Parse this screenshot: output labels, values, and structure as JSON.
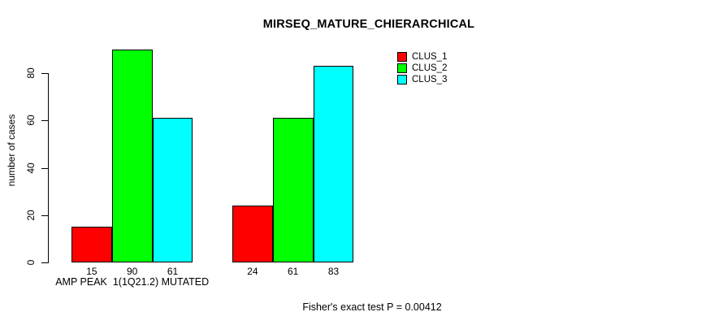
{
  "chart_data": {
    "type": "bar",
    "title": "MIRSEQ_MATURE_CHIERARCHICAL",
    "ylabel": "number of cases",
    "yticks": [
      0,
      20,
      40,
      60,
      80
    ],
    "ylim": [
      0,
      90
    ],
    "grid": false,
    "legend_position": "top-right",
    "categories": [
      "AMP PEAK  1(1Q21.2) MUTATED",
      ""
    ],
    "series": [
      {
        "name": "CLUS_1",
        "color": "#ff0000",
        "values": [
          15,
          24
        ]
      },
      {
        "name": "CLUS_2",
        "color": "#00ff00",
        "values": [
          90,
          61
        ]
      },
      {
        "name": "CLUS_3",
        "color": "#00ffff",
        "values": [
          61,
          83
        ]
      }
    ],
    "bar_value_labels": [
      [
        15,
        90,
        61
      ],
      [
        24,
        61,
        83
      ]
    ],
    "footer": "Fisher's exact test P = 0.00412"
  }
}
